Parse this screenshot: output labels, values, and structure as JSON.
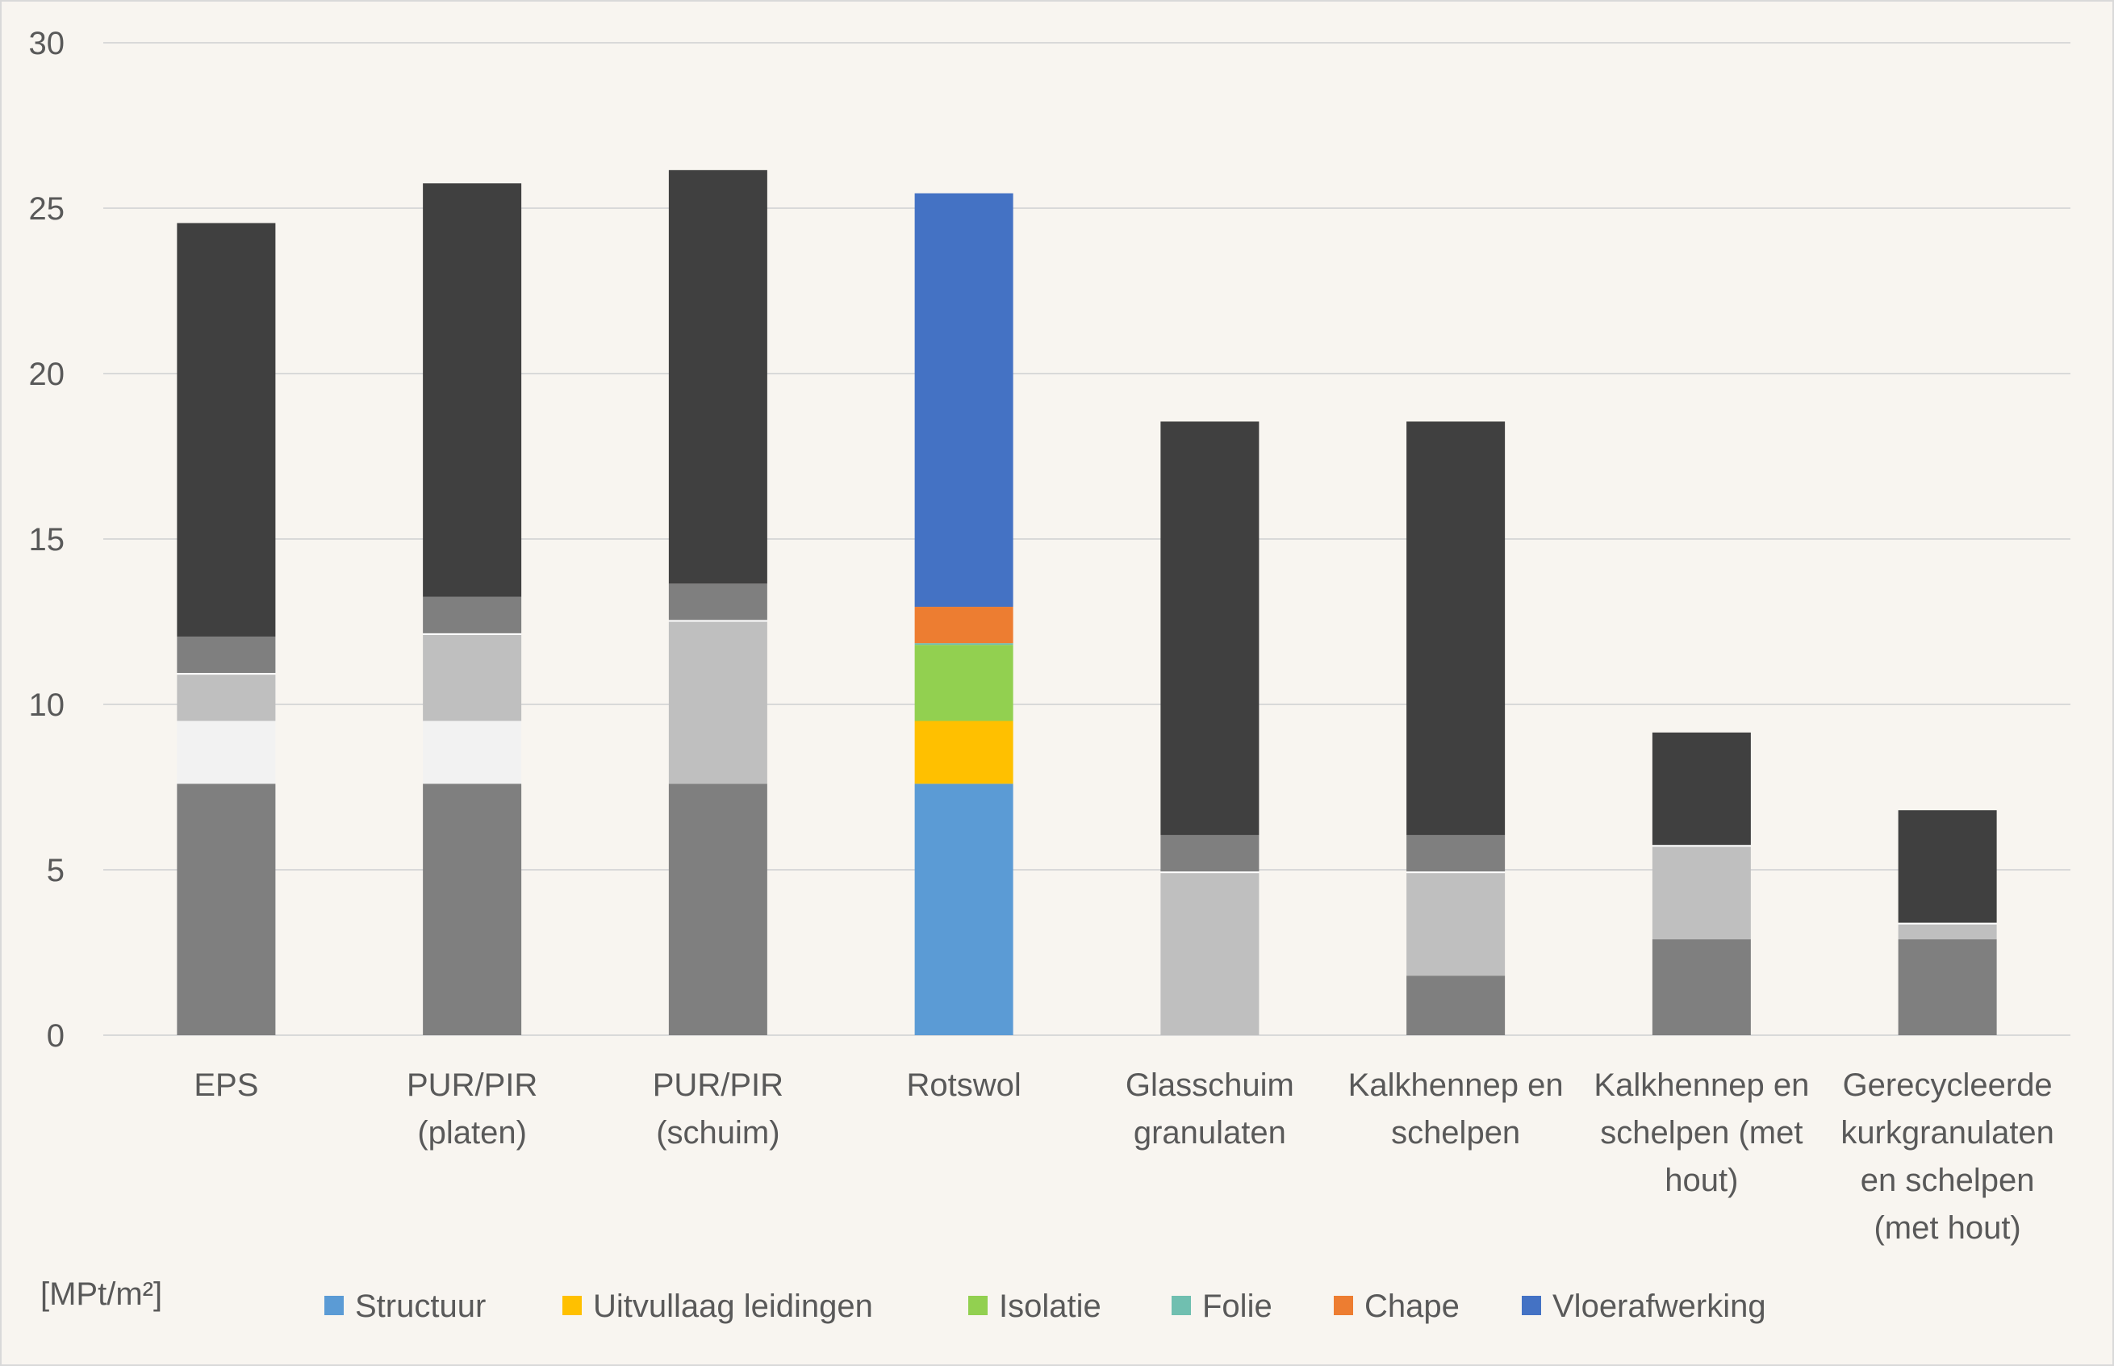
{
  "chart_data": {
    "type": "bar",
    "stacked": true,
    "title": "",
    "xlabel": "",
    "ylabel": "[MPt/m²]",
    "ylim": [
      0,
      30
    ],
    "yticks": [
      0,
      5,
      10,
      15,
      20,
      25,
      30
    ],
    "grid": true,
    "legend_position": "bottom",
    "categories": [
      [
        "EPS"
      ],
      [
        "PUR/PIR",
        "(platen)"
      ],
      [
        "PUR/PIR",
        "(schuim)"
      ],
      [
        "Rotswol"
      ],
      [
        "Glasschuim",
        "granulaten"
      ],
      [
        "Kalkhennep en",
        "schelpen"
      ],
      [
        "Kalkhennep en",
        "schelpen (met",
        "hout)"
      ],
      [
        "Gerecycleerde",
        "kurkgranulaten",
        "en schelpen",
        "(met hout)"
      ]
    ],
    "series": [
      {
        "name": "Structuur",
        "color": "#5b9bd5",
        "gray": "#7f7f7f",
        "values": [
          7.6,
          7.6,
          7.6,
          7.6,
          0,
          1.8,
          2.9,
          2.9
        ]
      },
      {
        "name": "Uitvullaag leidingen",
        "color": "#ffc000",
        "gray": "#f2f2f2",
        "values": [
          1.9,
          1.9,
          0,
          1.9,
          0,
          0,
          0,
          0
        ]
      },
      {
        "name": "Isolatie",
        "color": "#92d050",
        "gray": "#bfbfbf",
        "values": [
          1.4,
          2.6,
          4.9,
          2.3,
          4.9,
          3.1,
          2.8,
          0.45
        ]
      },
      {
        "name": "Folie",
        "color": "#70bfb0",
        "gray": "#ffffff",
        "values": [
          0.05,
          0.05,
          0.05,
          0.05,
          0.05,
          0.05,
          0.05,
          0.05
        ]
      },
      {
        "name": "Chape",
        "color": "#ed7d31",
        "gray": "#7f7f7f",
        "values": [
          1.1,
          1.1,
          1.1,
          1.1,
          1.1,
          1.1,
          0,
          0
        ]
      },
      {
        "name": "Vloerafwerking",
        "color": "#4472c4",
        "gray": "#404040",
        "values": [
          12.5,
          12.5,
          12.5,
          12.5,
          12.5,
          12.5,
          3.4,
          3.4
        ]
      }
    ],
    "highlight_category_index": 3
  }
}
